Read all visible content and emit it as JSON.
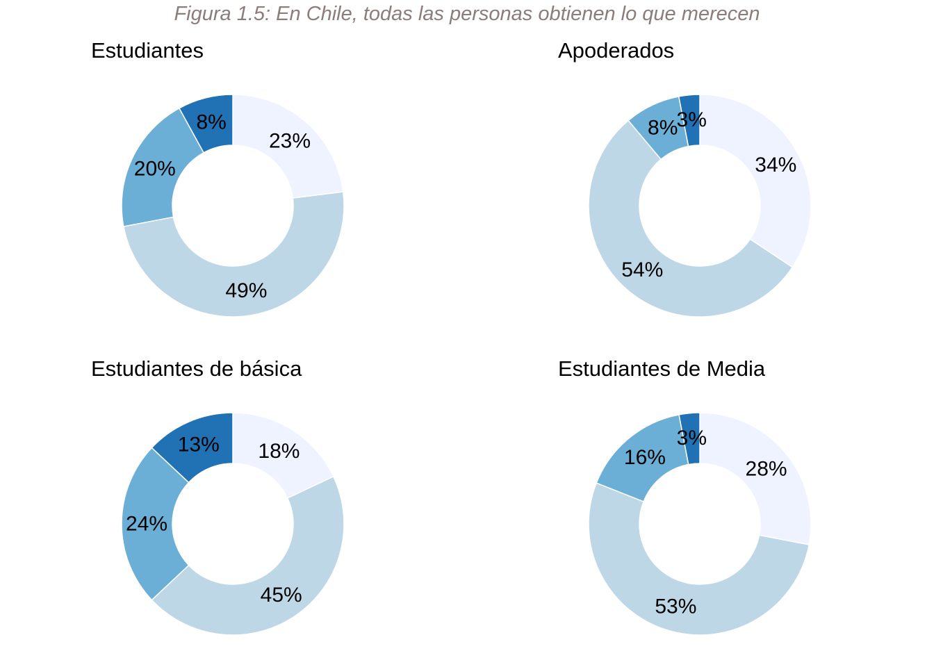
{
  "figure_title": "Figura 1.5: En Chile, todas las personas obtienen lo que merecen",
  "colors": [
    "#eff3ff",
    "#bdd7e7",
    "#6baed6",
    "#2171b5"
  ],
  "chart_data": [
    {
      "type": "pie",
      "donut": true,
      "title": "Estudiantes",
      "values": [
        23,
        49,
        20,
        8
      ],
      "labels": [
        "23%",
        "49%",
        "20%",
        "8%"
      ]
    },
    {
      "type": "pie",
      "donut": true,
      "title": "Apoderados",
      "values": [
        34,
        54,
        8,
        3
      ],
      "labels": [
        "34%",
        "54%",
        "8%",
        "3%"
      ]
    },
    {
      "type": "pie",
      "donut": true,
      "title": "Estudiantes de básica",
      "values": [
        18,
        45,
        24,
        13
      ],
      "labels": [
        "18%",
        "45%",
        "24%",
        "13%"
      ]
    },
    {
      "type": "pie",
      "donut": true,
      "title": "Estudiantes de Media",
      "values": [
        28,
        53,
        16,
        3
      ],
      "labels": [
        "28%",
        "53%",
        "16%",
        "3%"
      ]
    }
  ]
}
